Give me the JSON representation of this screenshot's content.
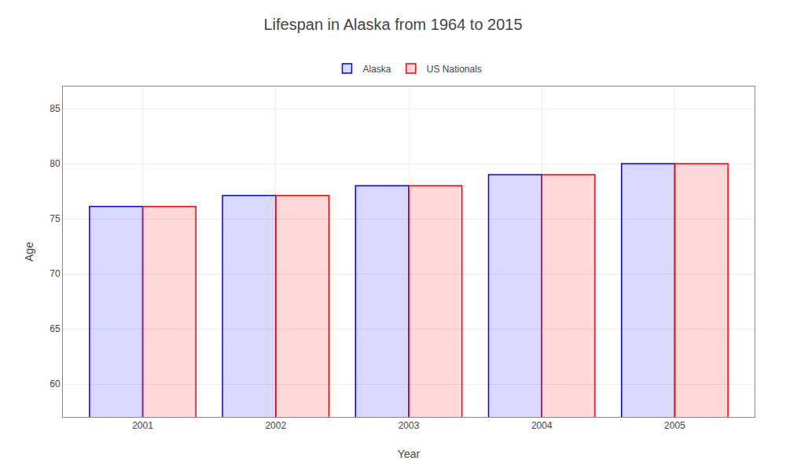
{
  "chart_data": {
    "type": "bar",
    "title": "Lifespan in Alaska from 1964 to 2015",
    "x_label": "Year",
    "y_label": "Age",
    "categories": [
      "2001",
      "2002",
      "2003",
      "2004",
      "2005"
    ],
    "series": [
      {
        "name": "Alaska",
        "color": "#0000ff",
        "values": [
          76.1,
          77.1,
          78.0,
          79.0,
          80.0
        ]
      },
      {
        "name": "US Nationals",
        "color": "#ff0000",
        "values": [
          76.1,
          77.1,
          78.0,
          79.0,
          80.0
        ]
      }
    ],
    "ylim": [
      57,
      87
    ],
    "yticks": [
      60,
      65,
      70,
      75,
      80,
      85
    ],
    "grid": true,
    "legend": "top"
  }
}
